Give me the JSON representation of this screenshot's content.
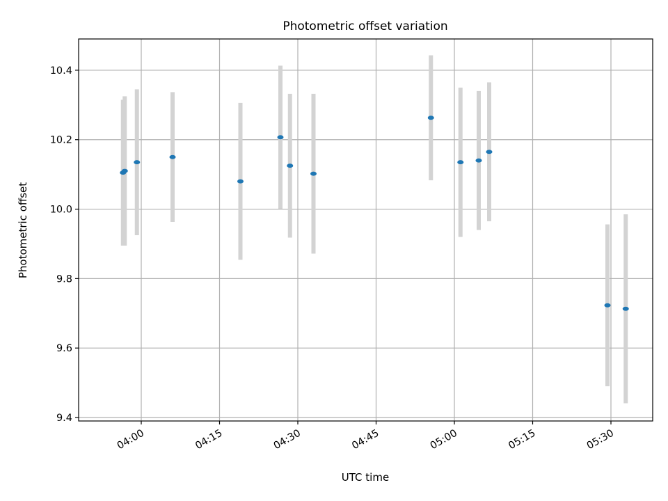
{
  "chart_data": {
    "type": "scatter",
    "title": "Photometric offset variation",
    "xlabel": "UTC time",
    "ylabel": "Photometric offset",
    "x_ticks": [
      "04:00",
      "04:15",
      "04:30",
      "04:45",
      "05:00",
      "05:15",
      "05:30"
    ],
    "y_ticks": [
      "9.4",
      "9.6",
      "9.8",
      "10.0",
      "10.2",
      "10.4"
    ],
    "xlim": [
      "03:48",
      "05:38"
    ],
    "ylim": [
      9.39,
      10.49
    ],
    "grid": true,
    "points": [
      {
        "x": "03:56:30",
        "y": 10.105,
        "err": 0.21
      },
      {
        "x": "03:56:50",
        "y": 10.11,
        "err": 0.215
      },
      {
        "x": "03:59:10",
        "y": 10.135,
        "err": 0.21
      },
      {
        "x": "04:06:00",
        "y": 10.15,
        "err": 0.187
      },
      {
        "x": "04:19:00",
        "y": 10.08,
        "err": 0.226
      },
      {
        "x": "04:26:40",
        "y": 10.207,
        "err": 0.206
      },
      {
        "x": "04:28:30",
        "y": 10.125,
        "err": 0.207
      },
      {
        "x": "04:33:00",
        "y": 10.102,
        "err": 0.23
      },
      {
        "x": "04:55:30",
        "y": 10.263,
        "err": 0.18
      },
      {
        "x": "05:01:10",
        "y": 10.135,
        "err": 0.215
      },
      {
        "x": "05:04:40",
        "y": 10.14,
        "err": 0.2
      },
      {
        "x": "05:06:40",
        "y": 10.165,
        "err": 0.2
      },
      {
        "x": "05:29:20",
        "y": 9.723,
        "err": 0.233
      },
      {
        "x": "05:32:50",
        "y": 9.713,
        "err": 0.272
      }
    ]
  }
}
